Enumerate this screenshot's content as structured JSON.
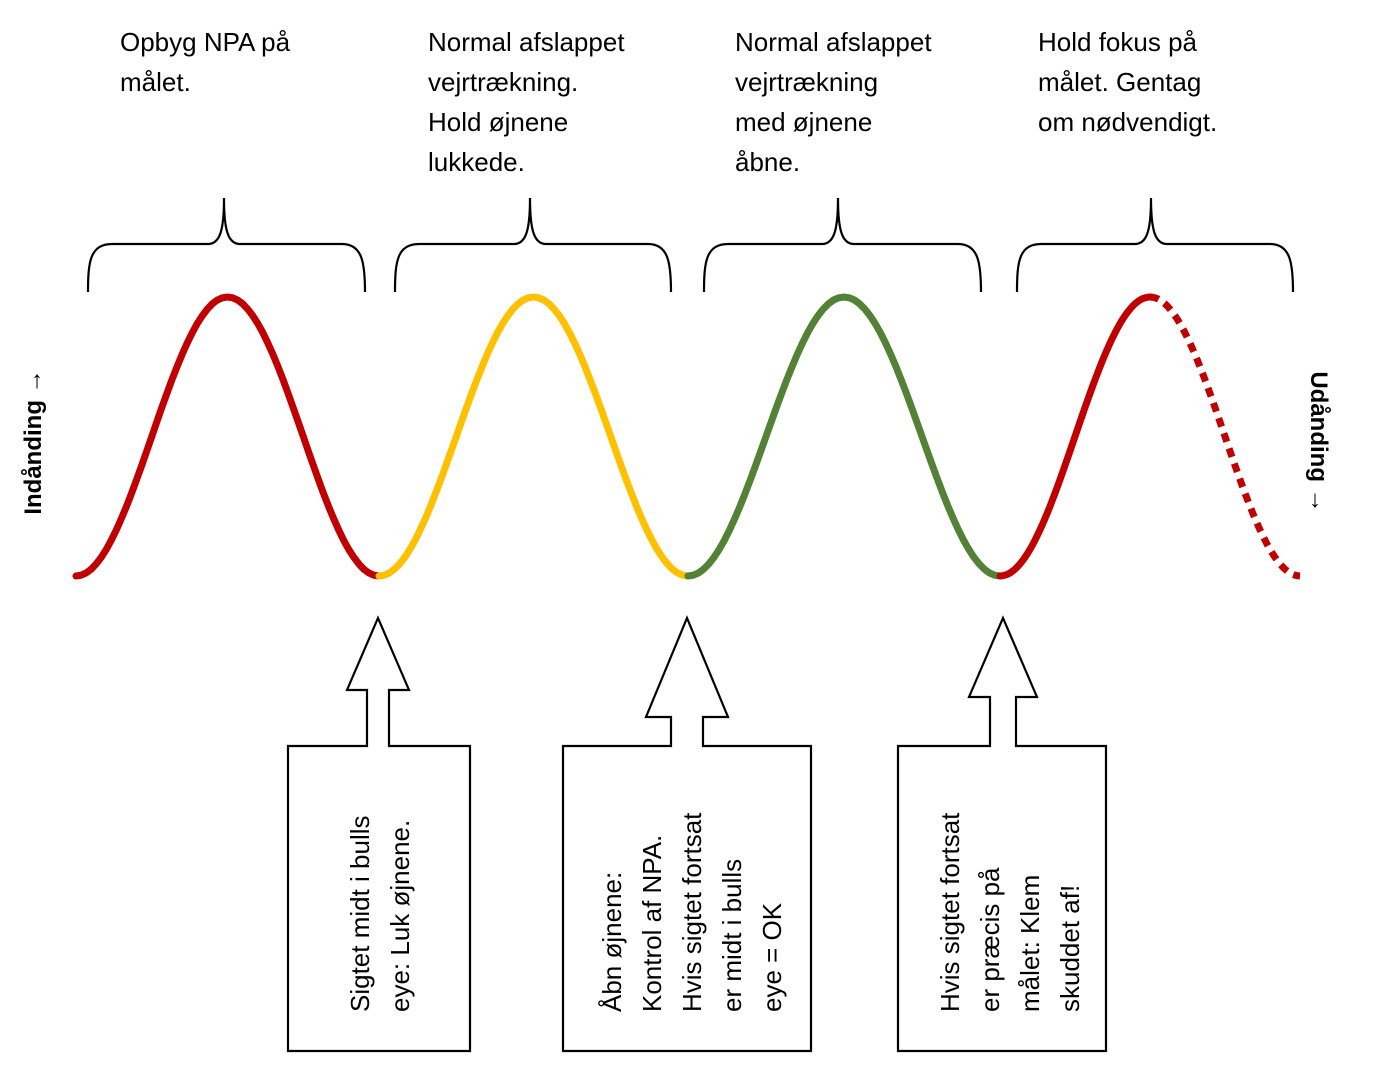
{
  "steps": [
    {
      "label": "Opbyg NPA på\nmålet.",
      "color": "#c00000",
      "dashed_tail": false
    },
    {
      "label": "Normal afslappet\nvejrtrækning.\nHold øjnene\nlukkede.",
      "color": "#ffc000",
      "dashed_tail": false
    },
    {
      "label": "Normal afslappet\nvejrtrækning\nmed øjnene\nåbne.",
      "color": "#538135",
      "dashed_tail": false
    },
    {
      "label": "Hold fokus på\nmålet. Gentag\nom nødvendigt.",
      "color": "#c00000",
      "dashed_tail": true
    }
  ],
  "axis": {
    "left_label": "Indånding →",
    "right_label": "Udånding →"
  },
  "callouts": [
    {
      "text": "Sigtet midt i bulls\neye: Luk øjnene."
    },
    {
      "text": "Åbn øjnene:\nKontrol af NPA.\nHvis sigtet fortsat\ner midt i bulls\neye = OK"
    },
    {
      "text": "Hvis sigtet fortsat\ner præcis på\nmålet: Klem\nskuddet af!"
    }
  ]
}
